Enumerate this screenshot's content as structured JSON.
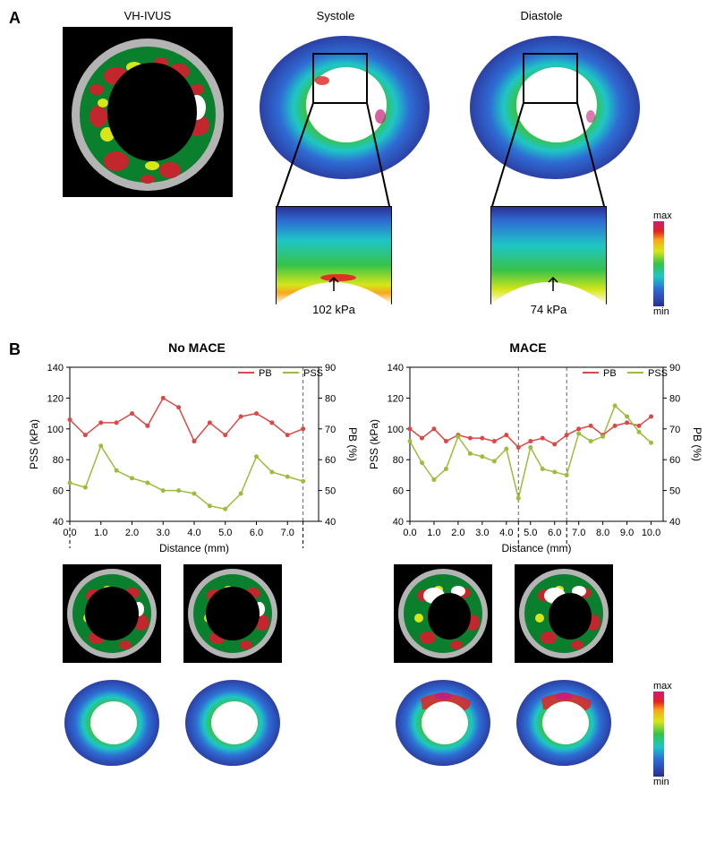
{
  "panelA": {
    "label": "A",
    "columns": [
      "VH-IVUS",
      "Systole",
      "Diastole"
    ],
    "ivus_colors": {
      "bg": "#000000",
      "outer_ring": "#b4b4b4",
      "fibrous": "#0a7f2e",
      "fibrofatty": "#d7e619",
      "necrotic": "#c1272d",
      "calcium": "#ffffff"
    },
    "stress_gradient": [
      "#2b2d8f",
      "#2e6bd4",
      "#1ec6c6",
      "#36c24a",
      "#d7e619",
      "#f7a71b",
      "#e32222",
      "#c41f7a"
    ],
    "colorbar": {
      "top": "max",
      "bottom": "min"
    },
    "systole_value": "102 kPa",
    "diastole_value": "74 kPa"
  },
  "panelB": {
    "label": "B",
    "left_title": "No MACE",
    "right_title": "MACE",
    "legend": {
      "pb": "PB",
      "pss": "PSS",
      "pb_color": "#d94a45",
      "pss_color": "#9cbc3c"
    },
    "axes": {
      "ylabel_left": "PSS (kPa)",
      "ylabel_right": "PB (%)",
      "xlabel": "Distance (mm)",
      "left_chart": {
        "xlim": [
          0,
          8
        ],
        "xticks": [
          0,
          1,
          2,
          3,
          4,
          5,
          6,
          7
        ],
        "ylim_pss": [
          40,
          140
        ],
        "yticks_pss": [
          40,
          60,
          80,
          100,
          120,
          140
        ],
        "ylim_pb": [
          40,
          90
        ],
        "yticks_pb": [
          40,
          50,
          60,
          70,
          80,
          90
        ]
      },
      "right_chart": {
        "xlim": [
          0,
          10.5
        ],
        "xticks": [
          0,
          1,
          2,
          3,
          4,
          5,
          6,
          7,
          8,
          9,
          10
        ],
        "ylim_pss": [
          40,
          140
        ],
        "yticks_pss": [
          40,
          60,
          80,
          100,
          120,
          140
        ],
        "ylim_pb": [
          40,
          90
        ],
        "yticks_pb": [
          40,
          50,
          60,
          70,
          80,
          90
        ]
      }
    },
    "left_data": {
      "x": [
        0.0,
        0.5,
        1.0,
        1.5,
        2.0,
        2.5,
        3.0,
        3.5,
        4.0,
        4.5,
        5.0,
        5.5,
        6.0,
        6.5,
        7.0,
        7.5
      ],
      "pb": [
        73,
        68,
        72,
        72,
        75,
        71,
        80,
        77,
        66,
        72,
        68,
        74,
        75,
        72,
        68,
        70
      ],
      "pss": [
        65,
        62,
        89,
        73,
        68,
        65,
        60,
        60,
        58,
        50,
        48,
        58,
        82,
        72,
        69,
        66
      ],
      "markers_x": [
        0.0,
        7.5
      ]
    },
    "right_data": {
      "x": [
        0.0,
        0.5,
        1.0,
        1.5,
        2.0,
        2.5,
        3.0,
        3.5,
        4.0,
        4.5,
        5.0,
        5.5,
        6.0,
        6.5,
        7.0,
        7.5,
        8.0,
        8.5,
        9.0,
        9.5,
        10.0
      ],
      "pb": [
        70,
        67,
        70,
        66,
        68,
        67,
        67,
        66,
        68,
        64,
        66,
        67,
        65,
        68,
        70,
        71,
        68,
        71,
        72,
        71,
        74
      ],
      "pss": [
        92,
        78,
        67,
        74,
        95,
        84,
        82,
        79,
        87,
        55,
        88,
        74,
        72,
        70,
        97,
        92,
        95,
        115,
        108,
        98,
        91
      ],
      "markers_x": [
        4.5,
        6.5
      ]
    },
    "colorbar": {
      "top": "max",
      "bottom": "min"
    }
  }
}
